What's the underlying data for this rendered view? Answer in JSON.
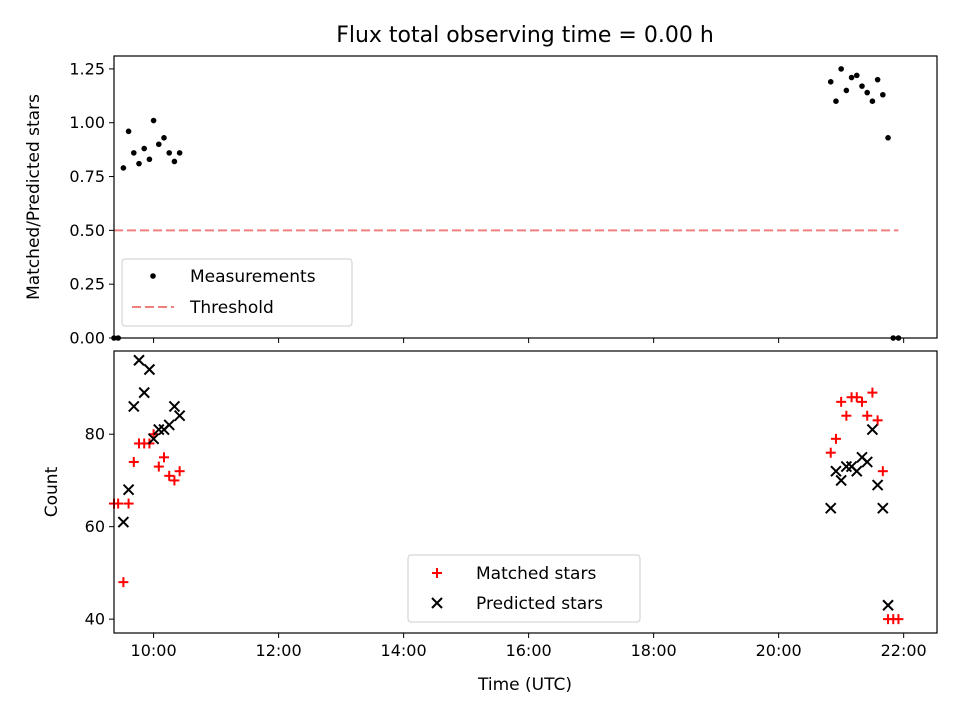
{
  "chart_data": [
    {
      "type": "scatter",
      "title": "Flux total observing time = 0.00 h",
      "xlabel": "",
      "ylabel": "Matched/Predicted stars",
      "xlim": [
        "09:22",
        "22:32"
      ],
      "ylim": [
        0,
        1.31
      ],
      "yticks": [
        0.0,
        0.25,
        0.5,
        0.75,
        1.0,
        1.25
      ],
      "ytick_labels": [
        "0.00",
        "0.25",
        "0.50",
        "0.75",
        "1.00",
        "1.25"
      ],
      "grid": false,
      "legend": "lower-left",
      "series": [
        {
          "name": "Measurements",
          "marker": "dot",
          "color": "#000000",
          "points": [
            {
              "x": "09:22",
              "y": 0.0
            },
            {
              "x": "09:26",
              "y": 0.0
            },
            {
              "x": "09:31",
              "y": 0.79
            },
            {
              "x": "09:36",
              "y": 0.96
            },
            {
              "x": "09:41",
              "y": 0.86
            },
            {
              "x": "09:46",
              "y": 0.81
            },
            {
              "x": "09:51",
              "y": 0.88
            },
            {
              "x": "09:56",
              "y": 0.83
            },
            {
              "x": "10:00",
              "y": 1.01
            },
            {
              "x": "10:05",
              "y": 0.9
            },
            {
              "x": "10:10",
              "y": 0.93
            },
            {
              "x": "10:15",
              "y": 0.86
            },
            {
              "x": "10:20",
              "y": 0.82
            },
            {
              "x": "10:25",
              "y": 0.86
            },
            {
              "x": "20:50",
              "y": 1.19
            },
            {
              "x": "20:55",
              "y": 1.1
            },
            {
              "x": "21:00",
              "y": 1.25
            },
            {
              "x": "21:05",
              "y": 1.15
            },
            {
              "x": "21:10",
              "y": 1.21
            },
            {
              "x": "21:15",
              "y": 1.22
            },
            {
              "x": "21:20",
              "y": 1.17
            },
            {
              "x": "21:25",
              "y": 1.14
            },
            {
              "x": "21:30",
              "y": 1.1
            },
            {
              "x": "21:35",
              "y": 1.2
            },
            {
              "x": "21:40",
              "y": 1.13
            },
            {
              "x": "21:45",
              "y": 0.93
            },
            {
              "x": "21:50",
              "y": 0.0
            },
            {
              "x": "21:55",
              "y": 0.0
            }
          ]
        },
        {
          "name": "Threshold",
          "marker": "dashed-line",
          "color": "#f08080",
          "points": [
            {
              "x": "09:22",
              "y": 0.5
            },
            {
              "x": "21:55",
              "y": 0.5
            }
          ]
        }
      ]
    },
    {
      "type": "scatter",
      "title": "",
      "xlabel": "Time (UTC)",
      "ylabel": "Count",
      "xlim": [
        "09:22",
        "22:32"
      ],
      "ylim": [
        37,
        98
      ],
      "xticks": [
        "10:00",
        "12:00",
        "14:00",
        "16:00",
        "18:00",
        "20:00",
        "22:00"
      ],
      "yticks": [
        40,
        60,
        80
      ],
      "ytick_labels": [
        "40",
        "60",
        "80"
      ],
      "grid": false,
      "legend": "lower-center",
      "series": [
        {
          "name": "Matched stars",
          "marker": "plus",
          "color": "#ff0000",
          "points": [
            {
              "x": "09:22",
              "y": 65
            },
            {
              "x": "09:26",
              "y": 65
            },
            {
              "x": "09:31",
              "y": 48
            },
            {
              "x": "09:36",
              "y": 65
            },
            {
              "x": "09:41",
              "y": 74
            },
            {
              "x": "09:46",
              "y": 78
            },
            {
              "x": "09:51",
              "y": 78
            },
            {
              "x": "09:56",
              "y": 78
            },
            {
              "x": "10:00",
              "y": 80
            },
            {
              "x": "10:05",
              "y": 73
            },
            {
              "x": "10:10",
              "y": 75
            },
            {
              "x": "10:15",
              "y": 71
            },
            {
              "x": "10:20",
              "y": 70
            },
            {
              "x": "10:25",
              "y": 72
            },
            {
              "x": "20:50",
              "y": 76
            },
            {
              "x": "20:55",
              "y": 79
            },
            {
              "x": "21:00",
              "y": 87
            },
            {
              "x": "21:05",
              "y": 84
            },
            {
              "x": "21:10",
              "y": 88
            },
            {
              "x": "21:15",
              "y": 88
            },
            {
              "x": "21:20",
              "y": 87
            },
            {
              "x": "21:25",
              "y": 84
            },
            {
              "x": "21:30",
              "y": 89
            },
            {
              "x": "21:35",
              "y": 83
            },
            {
              "x": "21:40",
              "y": 72
            },
            {
              "x": "21:45",
              "y": 40
            },
            {
              "x": "21:50",
              "y": 40
            },
            {
              "x": "21:55",
              "y": 40
            }
          ]
        },
        {
          "name": "Predicted stars",
          "marker": "x",
          "color": "#000000",
          "points": [
            {
              "x": "09:31",
              "y": 61
            },
            {
              "x": "09:36",
              "y": 68
            },
            {
              "x": "09:41",
              "y": 86
            },
            {
              "x": "09:46",
              "y": 96
            },
            {
              "x": "09:51",
              "y": 89
            },
            {
              "x": "09:56",
              "y": 94
            },
            {
              "x": "10:00",
              "y": 79
            },
            {
              "x": "10:05",
              "y": 81
            },
            {
              "x": "10:10",
              "y": 81
            },
            {
              "x": "10:15",
              "y": 82
            },
            {
              "x": "10:20",
              "y": 86
            },
            {
              "x": "10:25",
              "y": 84
            },
            {
              "x": "20:50",
              "y": 64
            },
            {
              "x": "20:55",
              "y": 72
            },
            {
              "x": "21:00",
              "y": 70
            },
            {
              "x": "21:05",
              "y": 73
            },
            {
              "x": "21:10",
              "y": 73
            },
            {
              "x": "21:15",
              "y": 72
            },
            {
              "x": "21:20",
              "y": 75
            },
            {
              "x": "21:25",
              "y": 74
            },
            {
              "x": "21:30",
              "y": 81
            },
            {
              "x": "21:35",
              "y": 69
            },
            {
              "x": "21:40",
              "y": 64
            },
            {
              "x": "21:45",
              "y": 43
            }
          ]
        }
      ]
    }
  ]
}
